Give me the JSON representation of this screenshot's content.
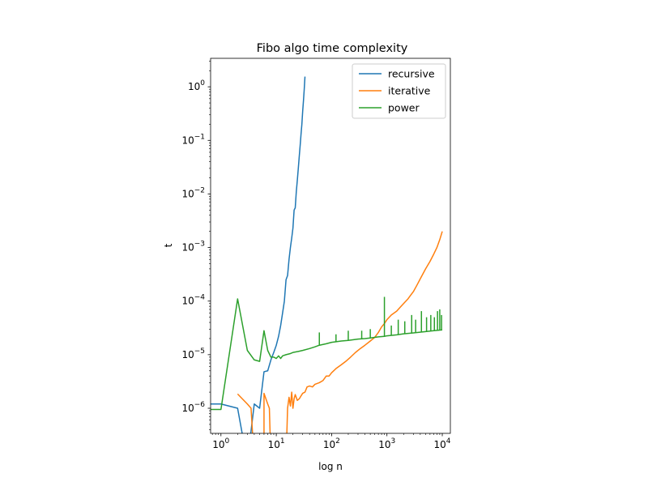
{
  "chart_data": {
    "type": "line",
    "title": "Fibo algo time complexity",
    "xlabel": "log n",
    "ylabel": "t",
    "xscale": "log",
    "yscale": "log",
    "xlim": [
      0.65,
      14000
    ],
    "ylim": [
      3.4e-07,
      3.4
    ],
    "grid": false,
    "legend_position": "top-right",
    "x_ticks": [
      {
        "value": 1,
        "base": "10",
        "exp": "0"
      },
      {
        "value": 10,
        "base": "10",
        "exp": "1"
      },
      {
        "value": 100,
        "base": "10",
        "exp": "2"
      },
      {
        "value": 1000,
        "base": "10",
        "exp": "3"
      },
      {
        "value": 10000,
        "base": "10",
        "exp": "4"
      }
    ],
    "y_ticks": [
      {
        "value": 1e-06,
        "base": "10",
        "exp": "−6"
      },
      {
        "value": 1e-05,
        "base": "10",
        "exp": "−5"
      },
      {
        "value": 0.0001,
        "base": "10",
        "exp": "−4"
      },
      {
        "value": 0.001,
        "base": "10",
        "exp": "−3"
      },
      {
        "value": 0.01,
        "base": "10",
        "exp": "−2"
      },
      {
        "value": 0.1,
        "base": "10",
        "exp": "−1"
      },
      {
        "value": 1,
        "base": "10",
        "exp": "0"
      }
    ],
    "series": [
      {
        "name": "recursive",
        "color": "#1f77b4",
        "points": [
          [
            0.5,
            1.2e-06
          ],
          [
            1,
            1.2e-06
          ],
          [
            2,
            1e-06
          ],
          [
            3,
            1e-07
          ],
          [
            4,
            1.2e-06
          ],
          [
            5,
            1e-06
          ],
          [
            6,
            4.8e-06
          ],
          [
            7,
            5e-06
          ],
          [
            8,
            8e-06
          ],
          [
            9,
            1.1e-05
          ],
          [
            10,
            1.5e-05
          ],
          [
            11,
            2.2e-05
          ],
          [
            12,
            3.5e-05
          ],
          [
            13,
            6e-05
          ],
          [
            14,
            0.0001
          ],
          [
            15,
            0.00025
          ],
          [
            16,
            0.0003
          ],
          [
            17,
            0.0006
          ],
          [
            18,
            0.001
          ],
          [
            19,
            0.0015
          ],
          [
            20,
            0.0023
          ],
          [
            21,
            0.005
          ],
          [
            22,
            0.0055
          ],
          [
            23,
            0.011
          ],
          [
            24,
            0.018
          ],
          [
            25,
            0.03
          ],
          [
            26,
            0.05
          ],
          [
            27,
            0.08
          ],
          [
            28,
            0.13
          ],
          [
            29,
            0.2
          ],
          [
            30,
            0.35
          ],
          [
            31,
            0.55
          ],
          [
            32,
            0.9
          ],
          [
            33,
            1.55
          ]
        ]
      },
      {
        "name": "iterative",
        "color": "#ff7f0e",
        "points": [
          [
            2,
            1.85e-06
          ],
          [
            3,
            1.2e-06
          ],
          [
            3.5,
            1e-06
          ],
          [
            4,
            1e-07
          ],
          [
            6,
            1e-07
          ],
          [
            6,
            1.9e-06
          ],
          [
            7,
            1.2e-06
          ],
          [
            7.5,
            1e-06
          ],
          [
            8,
            1e-07
          ],
          [
            15,
            1e-07
          ],
          [
            16,
            1e-06
          ],
          [
            17,
            1.6e-06
          ],
          [
            18,
            1.1e-06
          ],
          [
            19,
            2e-06
          ],
          [
            20,
            1e-06
          ],
          [
            21,
            1.5e-06
          ],
          [
            22,
            1.8e-06
          ],
          [
            24,
            1.4e-06
          ],
          [
            26,
            1.5e-06
          ],
          [
            28,
            1.7e-06
          ],
          [
            30,
            1.9e-06
          ],
          [
            33,
            2e-06
          ],
          [
            36,
            2.5e-06
          ],
          [
            40,
            2.6e-06
          ],
          [
            45,
            2.5e-06
          ],
          [
            50,
            2.8e-06
          ],
          [
            60,
            3e-06
          ],
          [
            70,
            3.3e-06
          ],
          [
            80,
            4e-06
          ],
          [
            90,
            4e-06
          ],
          [
            100,
            4.6e-06
          ],
          [
            120,
            5.5e-06
          ],
          [
            150,
            6.5e-06
          ],
          [
            180,
            7.5e-06
          ],
          [
            220,
            9e-06
          ],
          [
            270,
            1.1e-05
          ],
          [
            330,
            1.3e-05
          ],
          [
            400,
            1.5e-05
          ],
          [
            500,
            1.8e-05
          ],
          [
            600,
            2.1e-05
          ],
          [
            700,
            2.6e-05
          ],
          [
            800,
            3.3e-05
          ],
          [
            900,
            3.8e-05
          ],
          [
            1000,
            4.5e-05
          ],
          [
            1200,
            5.5e-05
          ],
          [
            1500,
            6.5e-05
          ],
          [
            1800,
            8e-05
          ],
          [
            2000,
            9e-05
          ],
          [
            2400,
            0.00011
          ],
          [
            2700,
            0.00013
          ],
          [
            3000,
            0.00015
          ],
          [
            3500,
            0.0002
          ],
          [
            4000,
            0.00026
          ],
          [
            5000,
            0.0004
          ],
          [
            6000,
            0.00055
          ],
          [
            7000,
            0.00075
          ],
          [
            8000,
            0.001
          ],
          [
            9000,
            0.0014
          ],
          [
            10000,
            0.002
          ]
        ]
      },
      {
        "name": "power",
        "color": "#2ca02c",
        "points": [
          [
            0.5,
            9.5e-07
          ],
          [
            1,
            9.5e-07
          ],
          [
            2,
            0.00011
          ],
          [
            3,
            1.2e-05
          ],
          [
            4,
            8e-06
          ],
          [
            5,
            7.5e-06
          ],
          [
            6,
            2.8e-05
          ],
          [
            7,
            1.2e-05
          ],
          [
            8,
            9e-06
          ],
          [
            9,
            9e-06
          ],
          [
            10,
            8.5e-06
          ],
          [
            11,
            9.5e-06
          ],
          [
            12,
            8.5e-06
          ],
          [
            13,
            9.5e-06
          ],
          [
            15,
            1e-05
          ],
          [
            18,
            1.05e-05
          ],
          [
            20,
            1.1e-05
          ],
          [
            25,
            1.15e-05
          ],
          [
            30,
            1.2e-05
          ],
          [
            40,
            1.3e-05
          ],
          [
            50,
            1.4e-05
          ],
          [
            60,
            1.5e-05
          ],
          [
            80,
            1.6e-05
          ],
          [
            100,
            1.7e-05
          ],
          [
            150,
            1.8e-05
          ],
          [
            200,
            1.85e-05
          ],
          [
            300,
            1.95e-05
          ],
          [
            400,
            2e-05
          ],
          [
            500,
            2.05e-05
          ],
          [
            700,
            2.15e-05
          ],
          [
            900,
            2.2e-05
          ],
          [
            1000,
            2.25e-05
          ],
          [
            1500,
            2.35e-05
          ],
          [
            2000,
            2.45e-05
          ],
          [
            3000,
            2.55e-05
          ],
          [
            5000,
            2.7e-05
          ],
          [
            7000,
            2.8e-05
          ],
          [
            10000,
            2.9e-05
          ]
        ],
        "spikes": [
          [
            60,
            2.6e-05
          ],
          [
            120,
            2.4e-05
          ],
          [
            200,
            2.8e-05
          ],
          [
            350,
            2.8e-05
          ],
          [
            500,
            3e-05
          ],
          [
            900,
            0.00012
          ],
          [
            1200,
            3.5e-05
          ],
          [
            1600,
            4.5e-05
          ],
          [
            2100,
            4.2e-05
          ],
          [
            2800,
            5.5e-05
          ],
          [
            3300,
            4.5e-05
          ],
          [
            4200,
            6.5e-05
          ],
          [
            5200,
            5e-05
          ],
          [
            6200,
            5.5e-05
          ],
          [
            7200,
            5e-05
          ],
          [
            8200,
            6.5e-05
          ],
          [
            9000,
            7e-05
          ],
          [
            9700,
            5.5e-05
          ]
        ]
      }
    ]
  }
}
